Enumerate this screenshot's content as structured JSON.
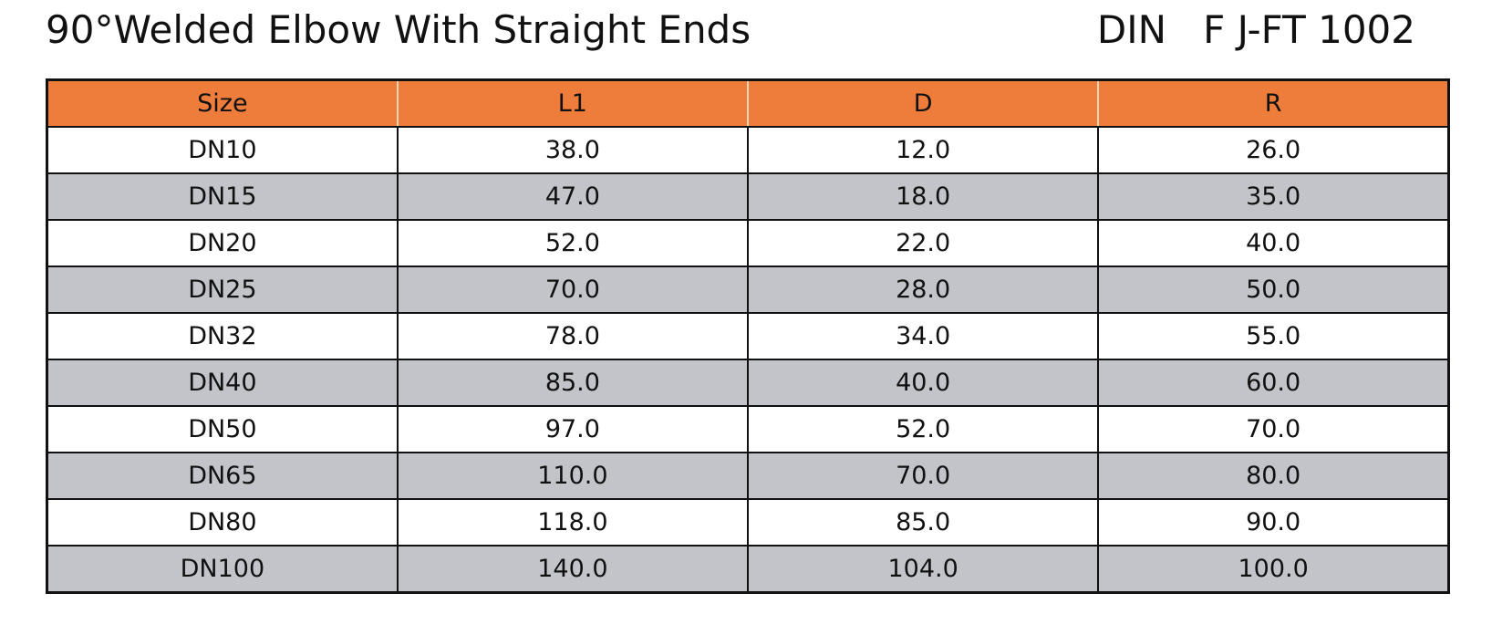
{
  "header": {
    "title": "90°Welded Elbow With Straight Ends",
    "standard": "DIN   F J-FT 1002"
  },
  "table": {
    "columns": [
      "Size",
      "L1",
      "D",
      "R"
    ],
    "rows": [
      [
        "DN10",
        "38.0",
        "12.0",
        "26.0"
      ],
      [
        "DN15",
        "47.0",
        "18.0",
        "35.0"
      ],
      [
        "DN20",
        "52.0",
        "22.0",
        "40.0"
      ],
      [
        "DN25",
        "70.0",
        "28.0",
        "50.0"
      ],
      [
        "DN32",
        "78.0",
        "34.0",
        "55.0"
      ],
      [
        "DN40",
        "85.0",
        "40.0",
        "60.0"
      ],
      [
        "DN50",
        "97.0",
        "52.0",
        "70.0"
      ],
      [
        "DN65",
        "110.0",
        "70.0",
        "80.0"
      ],
      [
        "DN80",
        "118.0",
        "85.0",
        "90.0"
      ],
      [
        "DN100",
        "140.0",
        "104.0",
        "100.0"
      ]
    ]
  }
}
